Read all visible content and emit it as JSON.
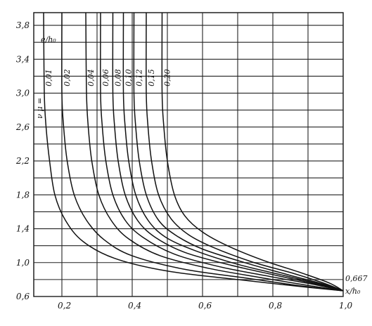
{
  "chart_data": {
    "type": "line",
    "title": "",
    "xlabel": "x/h₀",
    "ylabel": "e/h₀",
    "series_prefix": "ν μ = ",
    "xlim": [
      0.12,
      1.0
    ],
    "ylim": [
      0.6,
      3.95
    ],
    "grid": true,
    "x_ticks": [
      {
        "v": 0.2,
        "label": "0,2"
      },
      {
        "v": 0.4,
        "label": "0,4"
      },
      {
        "v": 0.6,
        "label": "0,6"
      },
      {
        "v": 0.8,
        "label": "0,8"
      },
      {
        "v": 1.0,
        "label": "1,0"
      }
    ],
    "y_ticks": [
      {
        "v": 0.6,
        "label": "0,6"
      },
      {
        "v": 1.0,
        "label": "1,0"
      },
      {
        "v": 1.4,
        "label": "1,4"
      },
      {
        "v": 1.8,
        "label": "1,8"
      },
      {
        "v": 2.2,
        "label": "2,2"
      },
      {
        "v": 2.6,
        "label": "2,6"
      },
      {
        "v": 3.0,
        "label": "3,0"
      },
      {
        "v": 3.4,
        "label": "3,4"
      },
      {
        "v": 3.8,
        "label": "3,8"
      }
    ],
    "x_grid": [
      0.2,
      0.3,
      0.4,
      0.5,
      0.6,
      0.7,
      0.8,
      0.9,
      1.0
    ],
    "y_grid": [
      0.6,
      0.8,
      1.0,
      1.2,
      1.4,
      1.6,
      1.8,
      2.0,
      2.2,
      2.4,
      2.6,
      2.8,
      3.0,
      3.2,
      3.4,
      3.6,
      3.8
    ],
    "end_point": {
      "x": 1.0,
      "y": 0.667,
      "label": "0,667"
    },
    "series": [
      {
        "name": "0,01",
        "points": [
          [
            0.148,
            3.95
          ],
          [
            0.15,
            3.0
          ],
          [
            0.155,
            2.6
          ],
          [
            0.165,
            2.2
          ],
          [
            0.18,
            1.8
          ],
          [
            0.21,
            1.5
          ],
          [
            0.26,
            1.25
          ],
          [
            0.35,
            1.05
          ],
          [
            0.5,
            0.9
          ],
          [
            0.7,
            0.8
          ],
          [
            0.85,
            0.73
          ],
          [
            1.0,
            0.667
          ]
        ]
      },
      {
        "name": "0,02",
        "points": [
          [
            0.2,
            3.95
          ],
          [
            0.2,
            3.0
          ],
          [
            0.205,
            2.6
          ],
          [
            0.215,
            2.2
          ],
          [
            0.235,
            1.8
          ],
          [
            0.27,
            1.5
          ],
          [
            0.32,
            1.27
          ],
          [
            0.4,
            1.08
          ],
          [
            0.55,
            0.92
          ],
          [
            0.72,
            0.82
          ],
          [
            0.87,
            0.73
          ],
          [
            1.0,
            0.667
          ]
        ]
      },
      {
        "name": "0,04",
        "points": [
          [
            0.268,
            3.95
          ],
          [
            0.27,
            3.0
          ],
          [
            0.275,
            2.6
          ],
          [
            0.285,
            2.2
          ],
          [
            0.305,
            1.8
          ],
          [
            0.34,
            1.5
          ],
          [
            0.39,
            1.28
          ],
          [
            0.48,
            1.08
          ],
          [
            0.62,
            0.93
          ],
          [
            0.77,
            0.82
          ],
          [
            0.9,
            0.73
          ],
          [
            1.0,
            0.667
          ]
        ]
      },
      {
        "name": "0,06",
        "points": [
          [
            0.31,
            3.95
          ],
          [
            0.31,
            3.0
          ],
          [
            0.315,
            2.6
          ],
          [
            0.325,
            2.2
          ],
          [
            0.345,
            1.8
          ],
          [
            0.38,
            1.5
          ],
          [
            0.43,
            1.3
          ],
          [
            0.52,
            1.1
          ],
          [
            0.65,
            0.95
          ],
          [
            0.8,
            0.83
          ],
          [
            0.92,
            0.74
          ],
          [
            1.0,
            0.667
          ]
        ]
      },
      {
        "name": "0,08",
        "points": [
          [
            0.345,
            3.95
          ],
          [
            0.345,
            3.0
          ],
          [
            0.35,
            2.6
          ],
          [
            0.36,
            2.2
          ],
          [
            0.38,
            1.8
          ],
          [
            0.415,
            1.5
          ],
          [
            0.465,
            1.3
          ],
          [
            0.55,
            1.12
          ],
          [
            0.68,
            0.97
          ],
          [
            0.82,
            0.84
          ],
          [
            0.93,
            0.74
          ],
          [
            1.0,
            0.667
          ]
        ]
      },
      {
        "name": "0,10",
        "points": [
          [
            0.375,
            3.95
          ],
          [
            0.375,
            3.0
          ],
          [
            0.38,
            2.6
          ],
          [
            0.39,
            2.2
          ],
          [
            0.41,
            1.8
          ],
          [
            0.445,
            1.5
          ],
          [
            0.495,
            1.3
          ],
          [
            0.58,
            1.14
          ],
          [
            0.7,
            0.98
          ],
          [
            0.83,
            0.85
          ],
          [
            0.94,
            0.74
          ],
          [
            1.0,
            0.667
          ]
        ]
      },
      {
        "name": "0,12",
        "points": [
          [
            0.405,
            3.95
          ],
          [
            0.405,
            3.0
          ],
          [
            0.41,
            2.6
          ],
          [
            0.42,
            2.2
          ],
          [
            0.44,
            1.8
          ],
          [
            0.475,
            1.5
          ],
          [
            0.525,
            1.32
          ],
          [
            0.6,
            1.16
          ],
          [
            0.72,
            1.0
          ],
          [
            0.84,
            0.86
          ],
          [
            0.94,
            0.75
          ],
          [
            1.0,
            0.667
          ]
        ]
      },
      {
        "name": "0,15",
        "points": [
          [
            0.44,
            3.95
          ],
          [
            0.44,
            3.0
          ],
          [
            0.445,
            2.6
          ],
          [
            0.455,
            2.2
          ],
          [
            0.475,
            1.8
          ],
          [
            0.51,
            1.52
          ],
          [
            0.56,
            1.33
          ],
          [
            0.63,
            1.18
          ],
          [
            0.74,
            1.01
          ],
          [
            0.86,
            0.87
          ],
          [
            0.95,
            0.75
          ],
          [
            1.0,
            0.667
          ]
        ]
      },
      {
        "name": "0,20",
        "points": [
          [
            0.485,
            3.95
          ],
          [
            0.485,
            3.0
          ],
          [
            0.49,
            2.6
          ],
          [
            0.5,
            2.2
          ],
          [
            0.52,
            1.8
          ],
          [
            0.55,
            1.55
          ],
          [
            0.6,
            1.36
          ],
          [
            0.67,
            1.2
          ],
          [
            0.77,
            1.03
          ],
          [
            0.88,
            0.88
          ],
          [
            0.96,
            0.76
          ],
          [
            1.0,
            0.667
          ]
        ]
      }
    ]
  }
}
